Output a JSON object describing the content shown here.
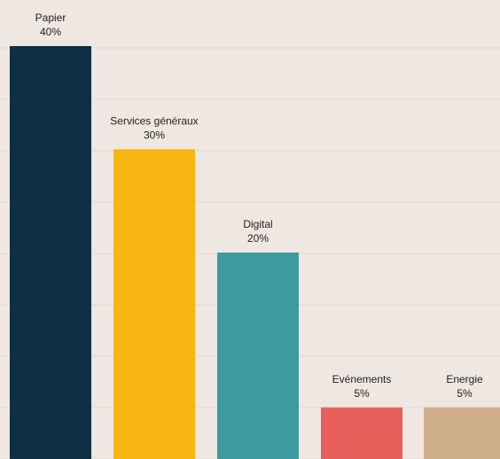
{
  "chart_data": {
    "type": "bar",
    "categories": [
      "Papier",
      "Services généraux",
      "Digital",
      "Evénements",
      "Energie"
    ],
    "values": [
      40,
      30,
      20,
      5,
      5
    ],
    "value_labels": [
      "40%",
      "30%",
      "20%",
      "5%",
      "5%"
    ],
    "colors": [
      "#0f2f45",
      "#f6b511",
      "#3d9aa1",
      "#e8605b",
      "#cfae8c"
    ],
    "title": "",
    "xlabel": "",
    "ylabel": "",
    "ylim": [
      0,
      45
    ],
    "grid": true,
    "legend": "none"
  }
}
